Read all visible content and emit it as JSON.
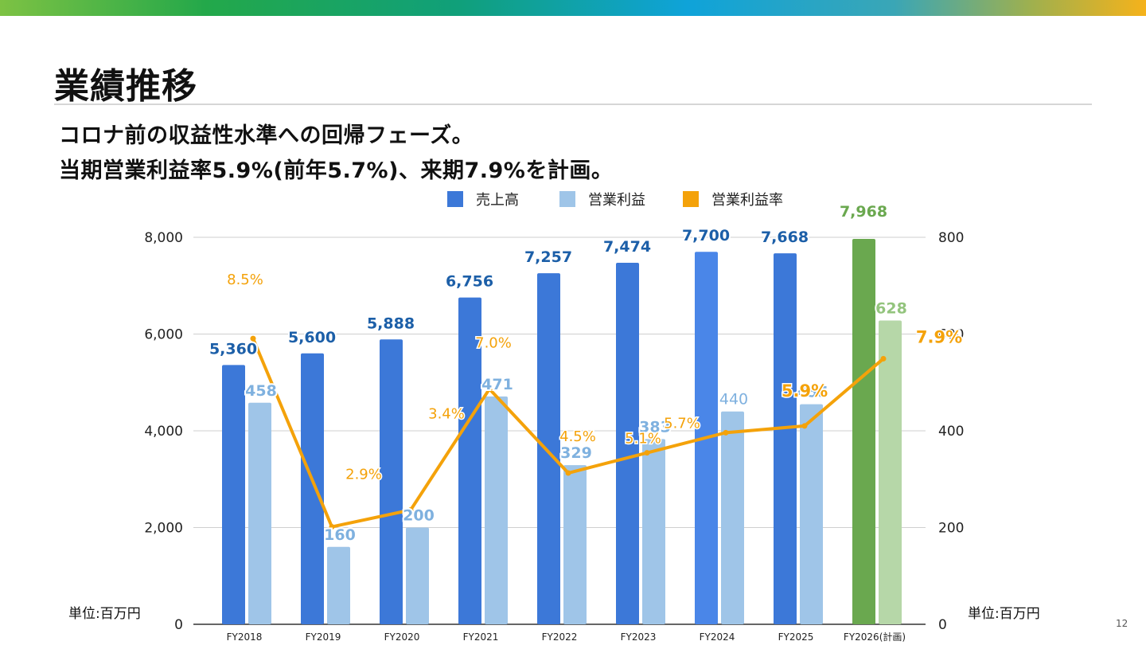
{
  "page": {
    "title": "業績推移",
    "subtitle_line1": "コロナ前の収益性水準への回帰フェーズ。",
    "subtitle_line2": "当期営業利益率5.9%(前年5.7%)、来期7.9%を計画。",
    "unit_left": "単位:百万円",
    "unit_right": "単位:百万円",
    "page_number": "12"
  },
  "colors": {
    "sales": "#3c78d8",
    "sales_fy2024": "#4a86e8",
    "sales_plan": "#6aa84f",
    "op_income": "#9fc5e8",
    "op_income_plan": "#b6d7a8",
    "margin": "#f4a20a",
    "sales_label": "#1c5fa8",
    "op_label": "#7fb1df",
    "plan_label": "#6aa84f",
    "plan_op_label": "#93c47d"
  },
  "chart_data": {
    "type": "bar",
    "categories": [
      "FY2018",
      "FY2019",
      "FY2020",
      "FY2021",
      "FY2022",
      "FY2023",
      "FY2024",
      "FY2025",
      "FY2026(計画)"
    ],
    "series": [
      {
        "name": "売上高",
        "axis": "left",
        "values": [
          5360,
          5600,
          5888,
          6756,
          7257,
          7474,
          7700,
          7668,
          7968
        ],
        "labels": [
          "5,360",
          "5,600",
          "5,888",
          "6,756",
          "7,257",
          "7,474",
          "7,700",
          "7,668",
          "7,968"
        ]
      },
      {
        "name": "営業利益",
        "axis": "right",
        "values": [
          458,
          160,
          200,
          471,
          329,
          383,
          440,
          455,
          628
        ],
        "labels": [
          "458",
          "160",
          "200",
          "471",
          "329",
          "383",
          "440",
          "455",
          "628"
        ]
      },
      {
        "name": "営業利益率",
        "type": "line",
        "values": [
          8.5,
          2.9,
          3.4,
          7.0,
          4.5,
          5.1,
          5.7,
          5.9,
          7.9
        ],
        "labels": [
          "8.5%",
          "2.9%",
          "3.4%",
          "7.0%",
          "4.5%",
          "5.1%",
          "5.7%",
          "5.9%",
          "7.9%"
        ]
      }
    ],
    "left_axis": {
      "ticks": [
        "0",
        "2,000",
        "4,000",
        "6,000",
        "8,000"
      ],
      "range": [
        0,
        8000
      ]
    },
    "right_axis": {
      "ticks": [
        "0",
        "200",
        "400",
        "600",
        "800"
      ],
      "range": [
        0,
        800
      ]
    },
    "legend": {
      "position": "top",
      "items": [
        "売上高",
        "営業利益",
        "営業利益率"
      ]
    },
    "grid": true
  }
}
